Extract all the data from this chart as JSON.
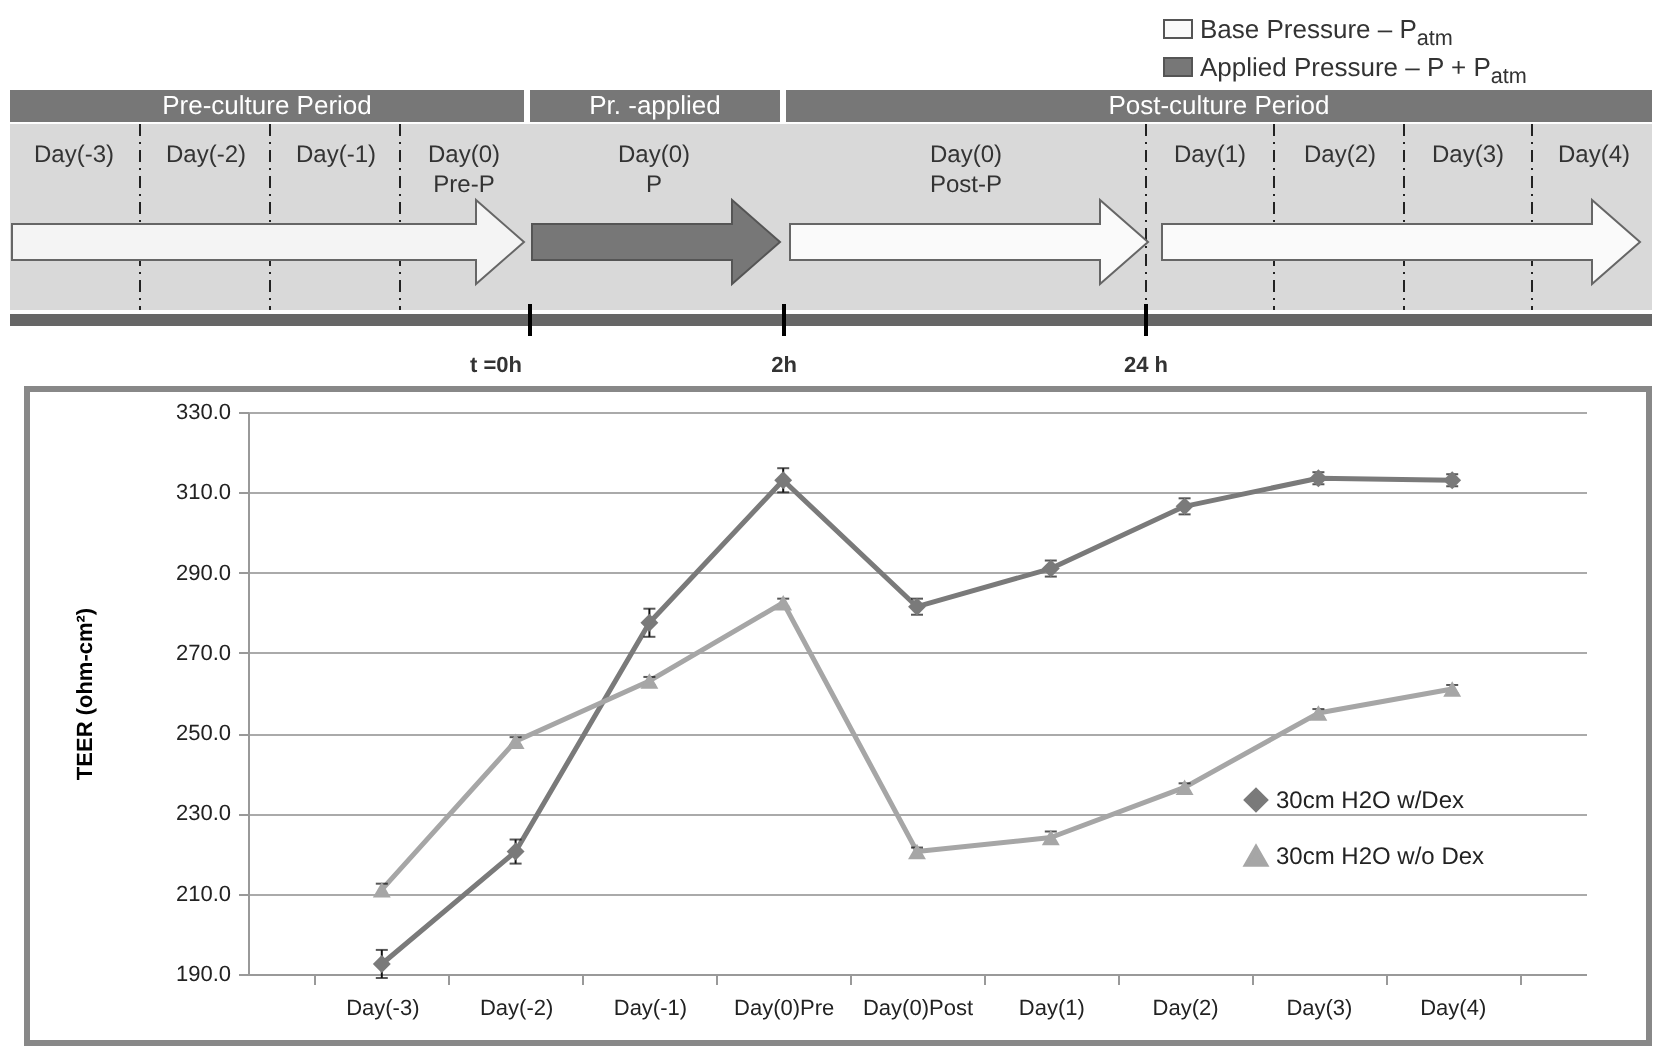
{
  "chart_data": {
    "type": "line",
    "ylabel": "TEER (ohm-cm²)",
    "categories": [
      "Day(-3)",
      "Day(-2)",
      "Day(-1)",
      "Day(0)Pre",
      "Day(0)Post",
      "Day(1)",
      "Day(2)",
      "Day(3)",
      "Day(4)"
    ],
    "series": [
      {
        "name": "30cm H2O w/Dex",
        "color": "#7a7a7a",
        "marker": "diamond",
        "values": [
          192.5,
          220.5,
          277.5,
          313,
          281.5,
          291,
          306.5,
          313.5,
          313
        ],
        "errors": [
          3.5,
          3,
          3.5,
          3,
          2,
          2,
          2,
          1.5,
          1.5
        ]
      },
      {
        "name": "30cm H2O w/o Dex",
        "color": "#a6a6a6",
        "marker": "triangle",
        "values": [
          211,
          248,
          263,
          282.5,
          220.5,
          224,
          236.5,
          255,
          261
        ],
        "errors": [
          1.5,
          1,
          1,
          1,
          1,
          1.5,
          1,
          1,
          1
        ]
      }
    ],
    "ylim": [
      190,
      330
    ],
    "yticks": [
      {
        "value": 190,
        "label": "190.0"
      },
      {
        "value": 210,
        "label": "210.0"
      },
      {
        "value": 230,
        "label": "230.0"
      },
      {
        "value": 250,
        "label": "250.0"
      },
      {
        "value": 270,
        "label": "270.0"
      },
      {
        "value": 290,
        "label": "290.0"
      },
      {
        "value": 310,
        "label": "310.0"
      },
      {
        "value": 330,
        "label": "330.0"
      }
    ],
    "grid": "y",
    "legend": "bottom right",
    "line_style": "solid",
    "annotations": [
      "Base Pressure – P$_{atm}$",
      "Applied Pressure – P + P$_{atm}$",
      "Pre-culture Period",
      "Pr. -applied",
      "Post-culture Period",
      "Day(-3)",
      "Day(-2)",
      "Day(-1)",
      "Day(0)\nPre-P",
      "Day(0)\nP",
      "Day(0)\nPost-P",
      "Day(1)",
      "Day(2)",
      "Day(3)",
      "Day(4)",
      "t =0h",
      "2h",
      "24 h"
    ]
  }
}
